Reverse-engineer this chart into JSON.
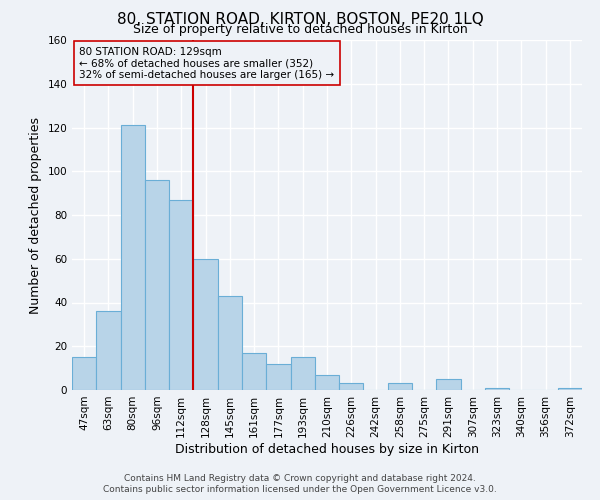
{
  "title": "80, STATION ROAD, KIRTON, BOSTON, PE20 1LQ",
  "subtitle": "Size of property relative to detached houses in Kirton",
  "xlabel": "Distribution of detached houses by size in Kirton",
  "ylabel": "Number of detached properties",
  "bar_labels": [
    "47sqm",
    "63sqm",
    "80sqm",
    "96sqm",
    "112sqm",
    "128sqm",
    "145sqm",
    "161sqm",
    "177sqm",
    "193sqm",
    "210sqm",
    "226sqm",
    "242sqm",
    "258sqm",
    "275sqm",
    "291sqm",
    "307sqm",
    "323sqm",
    "340sqm",
    "356sqm",
    "372sqm"
  ],
  "bar_values": [
    15,
    36,
    121,
    96,
    87,
    60,
    43,
    17,
    12,
    15,
    7,
    3,
    0,
    3,
    0,
    5,
    0,
    1,
    0,
    0,
    1
  ],
  "bar_color": "#b8d4e8",
  "bar_edge_color": "#6aaed6",
  "vline_x": 5,
  "vline_color": "#cc0000",
  "annotation_text": "80 STATION ROAD: 129sqm\n← 68% of detached houses are smaller (352)\n32% of semi-detached houses are larger (165) →",
  "annotation_box_edge": "#cc0000",
  "ylim": [
    0,
    160
  ],
  "yticks": [
    0,
    20,
    40,
    60,
    80,
    100,
    120,
    140,
    160
  ],
  "footer_line1": "Contains HM Land Registry data © Crown copyright and database right 2024.",
  "footer_line2": "Contains public sector information licensed under the Open Government Licence v3.0.",
  "bg_color": "#eef2f7",
  "grid_color": "#ffffff",
  "title_fontsize": 11,
  "subtitle_fontsize": 9,
  "axis_label_fontsize": 9,
  "tick_fontsize": 7.5,
  "annotation_fontsize": 7.5,
  "footer_fontsize": 6.5
}
